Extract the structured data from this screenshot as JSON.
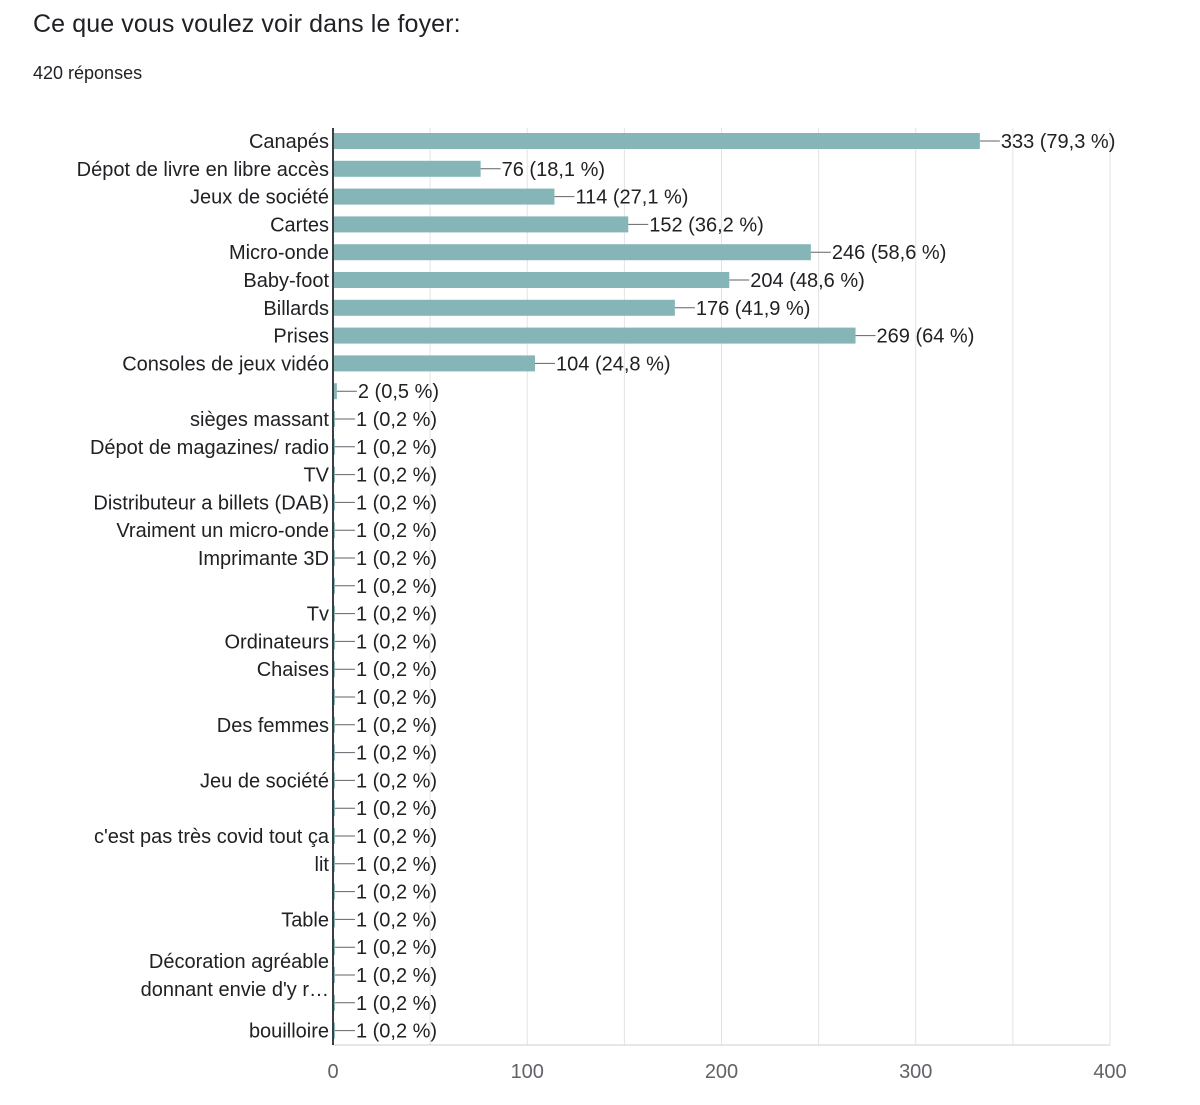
{
  "question": {
    "title": "Ce que vous voulez voir dans le foyer:",
    "responses": "420 réponses"
  },
  "colors": {
    "bar": "#86b5b8",
    "grid": "#e3e3e3",
    "axis": "#3c4043",
    "text": "#202124"
  },
  "chart_data": {
    "type": "bar",
    "orientation": "horizontal",
    "title": "Ce que vous voulez voir dans le foyer:",
    "xlabel": "",
    "ylabel": "",
    "xlim": [
      0,
      400
    ],
    "ticks": [
      0,
      100,
      200,
      300,
      400
    ],
    "grid": true,
    "categories": [
      "Canapés",
      "Dépot de livre en libre accès",
      "Jeux de société",
      "Cartes",
      "Micro-onde",
      "Baby-foot",
      "Billards",
      "Prises",
      "Consoles de jeux vidéo",
      "",
      "sièges massant",
      "Dépot de magazines/ radio",
      "TV",
      "Distributeur a billets (DAB)",
      "Vraiment un micro-onde",
      "Imprimante 3D",
      "",
      "Tv",
      "Ordinateurs",
      "Chaises",
      "",
      "Des femmes",
      "",
      "Jeu de société",
      "",
      "c'est pas très covid tout ça",
      "lit",
      "",
      "Table",
      "",
      "",
      "",
      "bouilloire"
    ],
    "values": [
      333,
      76,
      114,
      152,
      246,
      204,
      176,
      269,
      104,
      2,
      1,
      1,
      1,
      1,
      1,
      1,
      1,
      1,
      1,
      1,
      1,
      1,
      1,
      1,
      1,
      1,
      1,
      1,
      1,
      1,
      1,
      1,
      1
    ],
    "data_labels": [
      "333 (79,3 %)",
      "76 (18,1 %)",
      "114 (27,1 %)",
      "152 (36,2 %)",
      "246 (58,6 %)",
      "204 (48,6 %)",
      "176 (41,9 %)",
      "269 (64 %)",
      "104 (24,8 %)",
      "2 (0,5 %)",
      "1 (0,2 %)",
      "1 (0,2 %)",
      "1 (0,2 %)",
      "1 (0,2 %)",
      "1 (0,2 %)",
      "1 (0,2 %)",
      "1 (0,2 %)",
      "1 (0,2 %)",
      "1 (0,2 %)",
      "1 (0,2 %)",
      "1 (0,2 %)",
      "1 (0,2 %)",
      "1 (0,2 %)",
      "1 (0,2 %)",
      "1 (0,2 %)",
      "1 (0,2 %)",
      "1 (0,2 %)",
      "1 (0,2 %)",
      "1 (0,2 %)",
      "1 (0,2 %)",
      "1 (0,2 %)",
      "1 (0,2 %)",
      "1 (0,2 %)"
    ],
    "annotations": [
      {
        "text": "Décoration agréable",
        "between_rows": [
          29,
          30
        ]
      },
      {
        "text": "donnant envie d'y r…",
        "between_rows": [
          30,
          31
        ]
      }
    ]
  }
}
